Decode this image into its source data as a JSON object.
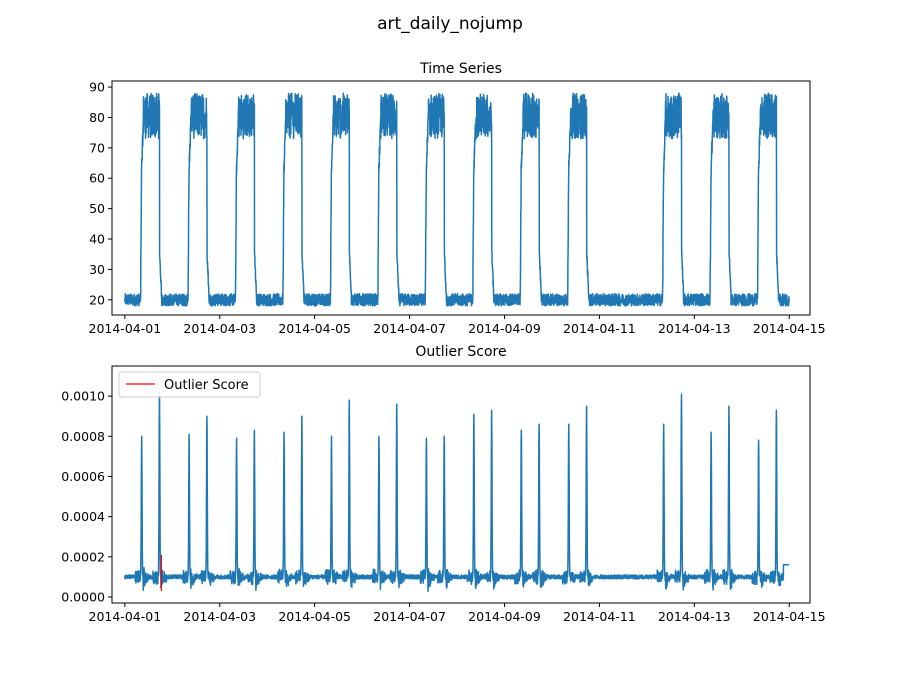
{
  "figure": {
    "suptitle": "art_daily_nojump"
  },
  "chart_data": [
    {
      "type": "line",
      "title": "Time Series",
      "xlabel": "",
      "ylabel": "",
      "x_range": [
        "2014-04-01",
        "2014-04-15"
      ],
      "xlim": [
        "2014-03-31T17:30",
        "2014-04-15T10:30"
      ],
      "ylim": [
        15,
        92
      ],
      "x_ticks": [
        "2014-04-01",
        "2014-04-03",
        "2014-04-05",
        "2014-04-07",
        "2014-04-09",
        "2014-04-11",
        "2014-04-13",
        "2014-04-15"
      ],
      "y_ticks": [
        20,
        30,
        40,
        50,
        60,
        70,
        80,
        90
      ],
      "grid": false,
      "series": [
        {
          "color": "#1f77b4",
          "baseline_range": [
            18,
            22
          ],
          "high_range": [
            72,
            88
          ],
          "high_periods": [
            [
              "2014-04-01T08:30",
              "2014-04-01T17:30"
            ],
            [
              "2014-04-02T08:30",
              "2014-04-02T17:30"
            ],
            [
              "2014-04-03T08:30",
              "2014-04-03T17:30"
            ],
            [
              "2014-04-04T08:30",
              "2014-04-04T17:30"
            ],
            [
              "2014-04-05T08:30",
              "2014-04-05T17:30"
            ],
            [
              "2014-04-06T08:30",
              "2014-04-06T17:30"
            ],
            [
              "2014-04-07T08:30",
              "2014-04-07T17:30"
            ],
            [
              "2014-04-08T08:30",
              "2014-04-08T17:30"
            ],
            [
              "2014-04-09T08:30",
              "2014-04-09T17:30"
            ],
            [
              "2014-04-10T08:30",
              "2014-04-10T17:30"
            ],
            [
              "2014-04-12T08:30",
              "2014-04-12T17:30"
            ],
            [
              "2014-04-13T08:30",
              "2014-04-13T17:30"
            ],
            [
              "2014-04-14T08:30",
              "2014-04-14T17:30"
            ]
          ]
        }
      ]
    },
    {
      "type": "line",
      "title": "Outlier Score",
      "xlabel": "",
      "ylabel": "",
      "x_range": [
        "2014-04-01",
        "2014-04-15"
      ],
      "xlim": [
        "2014-03-31T17:30",
        "2014-04-15T10:30"
      ],
      "ylim": [
        -3e-05,
        0.00115
      ],
      "x_ticks": [
        "2014-04-01",
        "2014-04-03",
        "2014-04-05",
        "2014-04-07",
        "2014-04-09",
        "2014-04-11",
        "2014-04-13",
        "2014-04-15"
      ],
      "y_ticks": [
        "0.0000",
        "0.0002",
        "0.0004",
        "0.0006",
        "0.0008",
        "0.0010"
      ],
      "y_tick_values": [
        0,
        0.0002,
        0.0004,
        0.0006,
        0.0008,
        0.001
      ],
      "grid": false,
      "legend": {
        "location": "upper left",
        "entries": [
          "Outlier Score"
        ]
      },
      "series": [
        {
          "color": "#1f77b4",
          "baseline": 0.0001,
          "peaks": [
            {
              "x": "2014-04-01T08:30",
              "y": 0.0008
            },
            {
              "x": "2014-04-01T17:30",
              "y": 0.00102
            },
            {
              "x": "2014-04-02T08:30",
              "y": 0.00081
            },
            {
              "x": "2014-04-02T17:30",
              "y": 0.0009
            },
            {
              "x": "2014-04-03T08:30",
              "y": 0.00079
            },
            {
              "x": "2014-04-03T17:30",
              "y": 0.00083
            },
            {
              "x": "2014-04-04T08:30",
              "y": 0.00082
            },
            {
              "x": "2014-04-04T17:30",
              "y": 0.0009
            },
            {
              "x": "2014-04-05T08:30",
              "y": 0.0008
            },
            {
              "x": "2014-04-05T17:30",
              "y": 0.00098
            },
            {
              "x": "2014-04-06T08:30",
              "y": 0.0008
            },
            {
              "x": "2014-04-06T17:30",
              "y": 0.00096
            },
            {
              "x": "2014-04-07T08:30",
              "y": 0.00079
            },
            {
              "x": "2014-04-07T17:30",
              "y": 0.0008
            },
            {
              "x": "2014-04-08T08:30",
              "y": 0.00091
            },
            {
              "x": "2014-04-08T17:30",
              "y": 0.00093
            },
            {
              "x": "2014-04-09T08:30",
              "y": 0.00083
            },
            {
              "x": "2014-04-09T17:30",
              "y": 0.00086
            },
            {
              "x": "2014-04-10T08:30",
              "y": 0.00086
            },
            {
              "x": "2014-04-10T17:30",
              "y": 0.00095
            },
            {
              "x": "2014-04-12T08:30",
              "y": 0.00086
            },
            {
              "x": "2014-04-12T17:30",
              "y": 0.00101
            },
            {
              "x": "2014-04-13T08:30",
              "y": 0.00082
            },
            {
              "x": "2014-04-13T17:30",
              "y": 0.00095
            },
            {
              "x": "2014-04-14T08:30",
              "y": 0.00078
            },
            {
              "x": "2014-04-14T17:30",
              "y": 0.00093
            }
          ],
          "end_value": 0.00016
        },
        {
          "name": "Outlier Score",
          "color": "#ff0000",
          "segments": [
            {
              "x": "2014-04-01T18:30",
              "y_min": 3e-05,
              "y_max": 0.00021
            }
          ]
        }
      ]
    }
  ]
}
